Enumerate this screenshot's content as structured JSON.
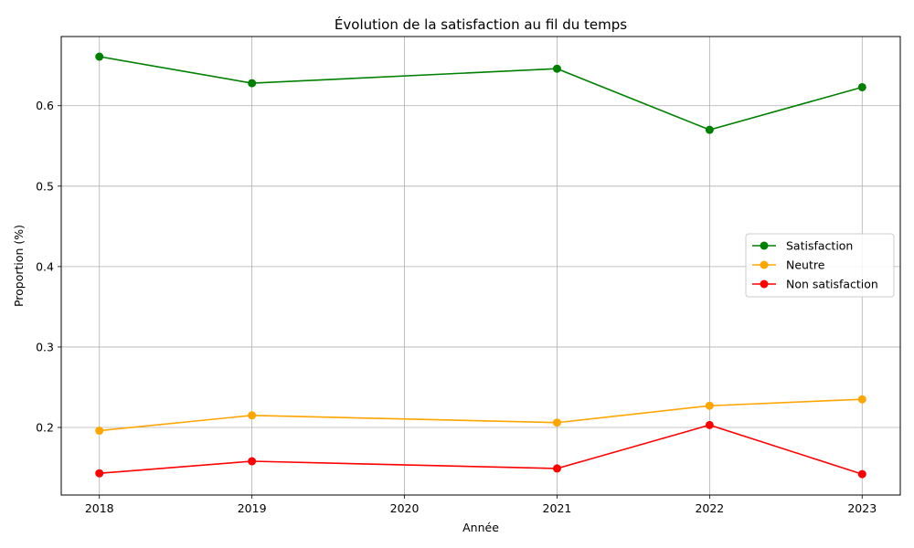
{
  "chart_data": {
    "type": "line",
    "title": "Évolution de la satisfaction au fil du temps",
    "xlabel": "Année",
    "ylabel": "Proportion (%)",
    "x": [
      2018,
      2019,
      2021,
      2022,
      2023
    ],
    "xticks": [
      2018,
      2019,
      2020,
      2021,
      2022,
      2023
    ],
    "yticks": [
      0.2,
      0.3,
      0.4,
      0.5,
      0.6
    ],
    "xlim": [
      2017.75,
      2023.25
    ],
    "ylim": [
      0.116,
      0.686
    ],
    "grid": true,
    "legend_position": "center-right",
    "series": [
      {
        "name": "Satisfaction",
        "color": "#008000",
        "values": [
          0.661,
          0.628,
          0.646,
          0.57,
          0.623
        ]
      },
      {
        "name": "Neutre",
        "color": "#ffa500",
        "values": [
          0.196,
          0.215,
          0.206,
          0.227,
          0.235
        ]
      },
      {
        "name": "Non satisfaction",
        "color": "#ff0000",
        "values": [
          0.143,
          0.158,
          0.149,
          0.203,
          0.142
        ]
      }
    ]
  }
}
